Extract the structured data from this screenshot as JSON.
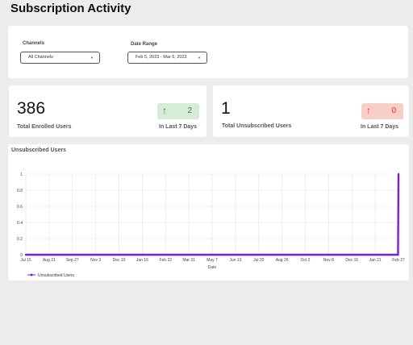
{
  "page": {
    "title": "Subscription Activity"
  },
  "filters": {
    "channels_label": "Channels",
    "channels_value": "All Channels",
    "date_range_label": "Date Range",
    "date_range_value": "Feb 5, 2023 - Mar 6, 2023"
  },
  "kpi": [
    {
      "value": "386",
      "label": "Total Enrolled Users",
      "delta": "2",
      "delta_label": "In Last 7 Days",
      "delta_bg": "#d7ecd7",
      "delta_color": "#2e7d32"
    },
    {
      "value": "1",
      "label": "Total Unsubscribed Users",
      "delta": "0",
      "delta_label": "In Last 7 Days",
      "delta_bg": "#f8cfc6",
      "delta_color": "#d93025"
    }
  ],
  "chart_data": {
    "type": "line",
    "title": "Unsubscribed Users",
    "xlabel": "Date",
    "ylabel": "",
    "x_ticks": [
      "Jul 15",
      "Aug 21",
      "Sep 27",
      "Nov 3",
      "Dec 10",
      "Jan 16",
      "Feb 22",
      "Mar 31",
      "May 7",
      "Jun 13",
      "Jul 20",
      "Aug 26",
      "Oct 2",
      "Nov 8",
      "Dec 15",
      "Jan 21",
      "Feb 27"
    ],
    "y_ticks": [
      "0",
      "0.2",
      "0.4",
      "0.6",
      "0.8",
      "1"
    ],
    "ylim": [
      0,
      1
    ],
    "grid": true,
    "legend_position": "bottom-left",
    "series": [
      {
        "name": "Unsubscribed Users",
        "color": "#7b1fd6",
        "x": [
          "Jul 15",
          "Feb 26",
          "Feb 27"
        ],
        "values": [
          0,
          0,
          1
        ]
      }
    ]
  },
  "icons": {
    "caret": "caret-down-icon",
    "arrow": "arrow-up-icon"
  }
}
